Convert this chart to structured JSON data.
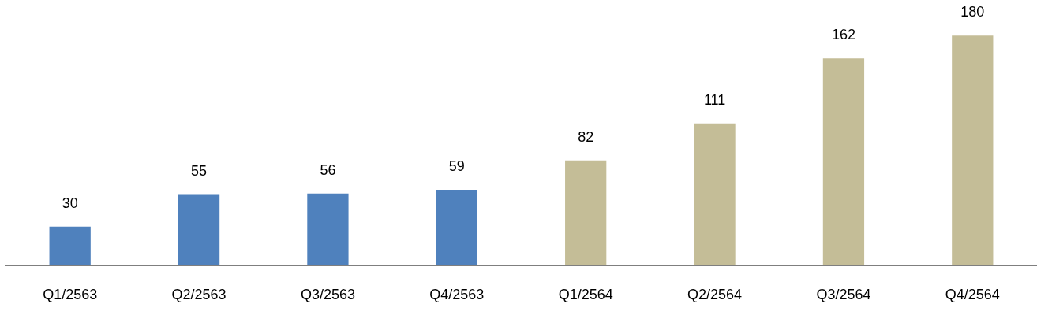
{
  "chart_data": {
    "type": "bar",
    "categories": [
      "Q1/2563",
      "Q2/2563",
      "Q3/2563",
      "Q4/2563",
      "Q1/2564",
      "Q2/2564",
      "Q3/2564",
      "Q4/2564"
    ],
    "values": [
      30,
      55,
      56,
      59,
      82,
      111,
      162,
      180
    ],
    "colors": [
      "#4f81bd",
      "#4f81bd",
      "#4f81bd",
      "#4f81bd",
      "#c4bd97",
      "#c4bd97",
      "#c4bd97",
      "#c4bd97"
    ],
    "data_labels": true,
    "legend": false,
    "grid": false,
    "tick_labels": "x"
  }
}
